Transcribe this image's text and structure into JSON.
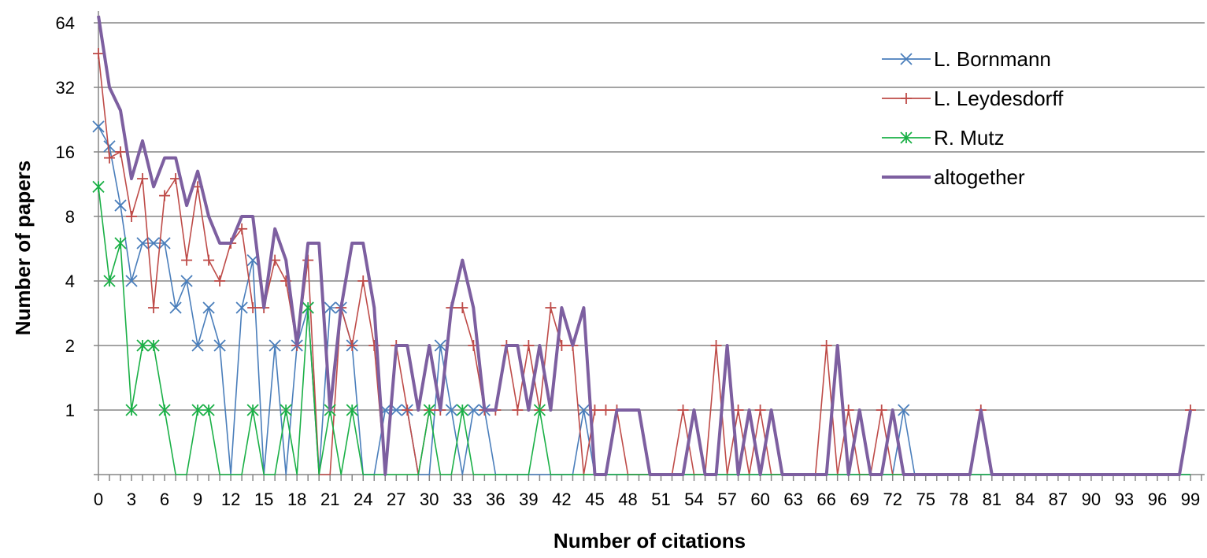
{
  "chart_data": {
    "type": "line",
    "y_scale": "log2",
    "ylabel": "Number of papers",
    "xlabel": "Number of citations",
    "ylim": [
      0.5,
      70
    ],
    "xlim": [
      0,
      100
    ],
    "y_ticks": [
      1,
      2,
      4,
      8,
      16,
      32,
      64
    ],
    "x_ticks": [
      0,
      3,
      6,
      9,
      12,
      15,
      18,
      21,
      24,
      27,
      30,
      33,
      36,
      39,
      42,
      45,
      48,
      51,
      54,
      57,
      60,
      63,
      66,
      69,
      72,
      75,
      78,
      81,
      84,
      87,
      90,
      93,
      96,
      99
    ],
    "grid": "horizontal",
    "legend_position": "top-right",
    "series": [
      {
        "name": "L. Bornmann",
        "color": "#4a7ebb",
        "marker": "x",
        "values": [
          21,
          17,
          9,
          4,
          6,
          6,
          6,
          3,
          4,
          2,
          3,
          2,
          0,
          3,
          5,
          0,
          2,
          0,
          2,
          3,
          0,
          3,
          3,
          2,
          0,
          0,
          1,
          1,
          1,
          0,
          0,
          2,
          1,
          0,
          1,
          1,
          0,
          0,
          0,
          0,
          0,
          0,
          0,
          0,
          1,
          0,
          0,
          0,
          0,
          0,
          0,
          0,
          0,
          0,
          0,
          0,
          0,
          0,
          0,
          0,
          0,
          0,
          0,
          0,
          0,
          0,
          0,
          0,
          0,
          0,
          0,
          0,
          0,
          1,
          0,
          0,
          0,
          0,
          0,
          0,
          0,
          0,
          0,
          0,
          0,
          0,
          0,
          0,
          0,
          0,
          0,
          0,
          0,
          0,
          0,
          0,
          0,
          0,
          0,
          0
        ]
      },
      {
        "name": "L. Leydesdorff",
        "color": "#be4b48",
        "marker": "plus",
        "values": [
          46,
          15,
          16,
          8,
          12,
          3,
          10,
          12,
          5,
          11,
          5,
          4,
          6,
          7,
          3,
          3,
          5,
          4,
          2,
          5,
          0,
          0,
          3,
          2,
          4,
          2,
          0,
          2,
          1,
          0,
          1,
          1,
          3,
          3,
          2,
          1,
          1,
          2,
          1,
          2,
          1,
          3,
          2,
          2,
          0,
          1,
          1,
          1,
          0,
          0,
          0,
          0,
          0,
          1,
          0,
          0,
          2,
          0,
          1,
          0,
          1,
          0,
          0,
          0,
          0,
          0,
          2,
          0,
          1,
          0,
          0,
          1,
          0,
          0,
          0,
          0,
          0,
          0,
          0,
          0,
          1,
          0,
          0,
          0,
          0,
          0,
          0,
          0,
          0,
          0,
          0,
          0,
          0,
          0,
          0,
          0,
          0,
          0,
          0,
          1
        ]
      },
      {
        "name": "R. Mutz",
        "color": "#1ab046",
        "marker": "star",
        "values": [
          11,
          4,
          6,
          1,
          2,
          2,
          1,
          0,
          0,
          1,
          1,
          0,
          0,
          0,
          1,
          0,
          0,
          1,
          0,
          3,
          0,
          1,
          0,
          1,
          0,
          0,
          0,
          0,
          0,
          0,
          1,
          0,
          0,
          1,
          0,
          0,
          0,
          0,
          0,
          0,
          1,
          0,
          0,
          0,
          0,
          0,
          0,
          0,
          0,
          0,
          0,
          0,
          0,
          0,
          0,
          0,
          0,
          0,
          0,
          0,
          0,
          0,
          0,
          0,
          0,
          0,
          0,
          0,
          0,
          0,
          0,
          0,
          0,
          0,
          0,
          0,
          0,
          0,
          0,
          0,
          0,
          0,
          0,
          0,
          0,
          0,
          0,
          0,
          0,
          0,
          0,
          0,
          0,
          0,
          0,
          0,
          0,
          0,
          0,
          0
        ]
      },
      {
        "name": "altogether",
        "color": "#7d5fa0",
        "marker": "none",
        "values": [
          69,
          32,
          25,
          12,
          18,
          11,
          15,
          15,
          9,
          13,
          8,
          6,
          6,
          8,
          8,
          3,
          7,
          5,
          2,
          6,
          6,
          1,
          3,
          6,
          6,
          3,
          0,
          2,
          2,
          1,
          2,
          1,
          3,
          5,
          3,
          1,
          1,
          2,
          2,
          1,
          2,
          1,
          3,
          2,
          3,
          0,
          0,
          1,
          1,
          1,
          0,
          0,
          0,
          0,
          1,
          0,
          0,
          2,
          0,
          1,
          0,
          1,
          0,
          0,
          0,
          0,
          0,
          2,
          0,
          1,
          0,
          0,
          1,
          0,
          0,
          0,
          0,
          0,
          0,
          0,
          1,
          0,
          0,
          0,
          0,
          0,
          0,
          0,
          0,
          0,
          0,
          0,
          0,
          0,
          0,
          0,
          0,
          0,
          0,
          1
        ]
      }
    ]
  }
}
